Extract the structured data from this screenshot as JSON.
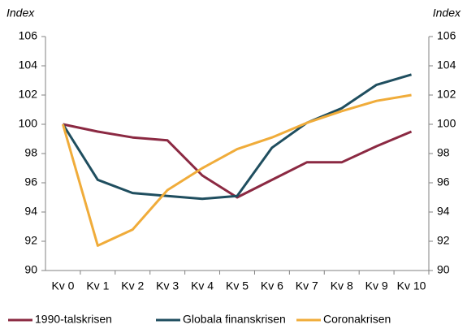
{
  "chart_data": {
    "type": "line",
    "ylabel": "Index",
    "y2label": "Index",
    "categories": [
      "Kv 0",
      "Kv 1",
      "Kv 2",
      "Kv 3",
      "Kv 4",
      "Kv 5",
      "Kv 6",
      "Kv 7",
      "Kv 8",
      "Kv 9",
      "Kv 10"
    ],
    "series": [
      {
        "name": "1990-talskrisen",
        "color": "#8b2942",
        "values": [
          100,
          99.5,
          99.1,
          98.9,
          96.5,
          95.0,
          96.2,
          97.4,
          97.4,
          98.5,
          99.5
        ]
      },
      {
        "name": "Globala finanskrisen",
        "color": "#1f4e5f",
        "values": [
          100,
          96.2,
          95.3,
          95.1,
          94.9,
          95.1,
          98.4,
          100.1,
          101.1,
          102.7,
          103.4
        ]
      },
      {
        "name": "Coronakrisen",
        "color": "#f0ac3a",
        "values": [
          100,
          91.7,
          92.8,
          95.5,
          97.0,
          98.3,
          99.1,
          100.1,
          100.9,
          101.6,
          102.0
        ]
      }
    ],
    "ylim": [
      90,
      106
    ],
    "yticks": [
      90,
      92,
      94,
      96,
      98,
      100,
      102,
      104,
      106
    ],
    "y2lim": [
      90,
      106
    ],
    "y2ticks": [
      90,
      92,
      94,
      96,
      98,
      100,
      102,
      104,
      106
    ],
    "grid": false,
    "legend": "bottom"
  }
}
